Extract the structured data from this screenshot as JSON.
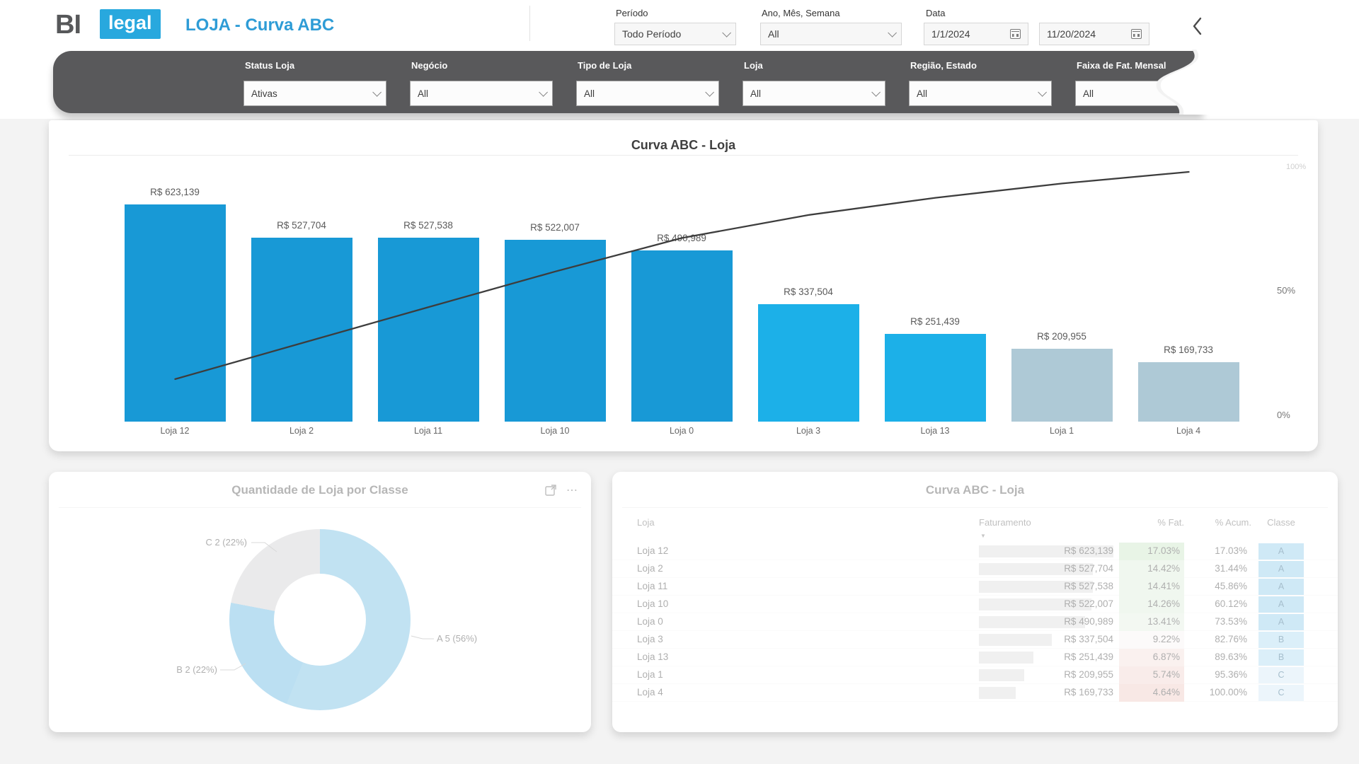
{
  "header": {
    "logo_primary": "BI",
    "logo_accent": "legal",
    "page_title": "LOJA - Curva ABC",
    "accent_color": "#28a8de"
  },
  "top_filters": {
    "periodo": {
      "label": "Período",
      "value": "Todo Período"
    },
    "ano_mes_semana": {
      "label": "Ano, Mês, Semana",
      "value": "All"
    },
    "data": {
      "label": "Data",
      "start": "1/1/2024",
      "end": "11/20/2024"
    }
  },
  "slicer_bar": {
    "filters": [
      {
        "label": "Status Loja",
        "value": "Ativas"
      },
      {
        "label": "Negócio",
        "value": "All"
      },
      {
        "label": "Tipo de Loja",
        "value": "All"
      },
      {
        "label": "Loja",
        "value": "All"
      },
      {
        "label": "Região, Estado",
        "value": "All"
      },
      {
        "label": "Faixa de Fat. Mensal",
        "value": "All"
      }
    ]
  },
  "chart_data": [
    {
      "type": "bar",
      "title": "Curva ABC - Loja",
      "categories": [
        "Loja 12",
        "Loja 2",
        "Loja 11",
        "Loja 10",
        "Loja 0",
        "Loja 3",
        "Loja 13",
        "Loja 1",
        "Loja 4"
      ],
      "series": [
        {
          "name": "Faturamento",
          "type": "bar",
          "values": [
            623139,
            527704,
            527538,
            522007,
            490989,
            337504,
            251439,
            209955,
            169733
          ],
          "labels": [
            "R$ 623,139",
            "R$ 527,704",
            "R$ 527,538",
            "R$ 522,007",
            "R$ 490,989",
            "R$ 337,504",
            "R$ 251,439",
            "R$ 209,955",
            "R$ 169,733"
          ],
          "classes": [
            "A",
            "A",
            "A",
            "A",
            "A",
            "B",
            "B",
            "C",
            "C"
          ]
        },
        {
          "name": "% Acumulado",
          "type": "line",
          "values": [
            17.03,
            31.44,
            45.86,
            60.12,
            73.53,
            82.76,
            89.63,
            95.36,
            100.0
          ]
        }
      ],
      "class_colors": {
        "A": "#1899d6",
        "B": "#1cb0e8",
        "C": "#aec9d6"
      },
      "line_color": "#3d3d3d",
      "y2_axis": {
        "ticks": [
          "100%",
          "50%",
          "0%"
        ],
        "range": [
          0,
          100
        ]
      },
      "ylim": [
        0,
        700000
      ],
      "legend": "off",
      "grid": "off"
    },
    {
      "type": "pie",
      "title": "Quantidade de Loja por Classe",
      "labels": [
        "A 5 (56%)",
        "B 2 (22%)",
        "C 2 (22%)"
      ],
      "values": [
        5,
        2,
        2
      ],
      "percents": [
        56,
        22,
        22
      ],
      "colors": [
        "#8fcbe9",
        "#85c6e8",
        "#d9dadc"
      ],
      "more_icon": "⋯"
    },
    {
      "type": "table",
      "title": "Curva ABC - Loja",
      "columns": [
        "Loja",
        "Faturamento",
        "% Fat.",
        "% Acum.",
        "Classe"
      ],
      "sort_column": "Faturamento",
      "sort_direction": "desc",
      "class_cell_colors": {
        "A": "#a9d8f0",
        "B": "#bfe2f5",
        "C": "#ddeef8"
      },
      "rows": [
        {
          "loja": "Loja 12",
          "faturamento": "R$ 623,139",
          "valor": 623139,
          "fat": "17.03%",
          "fat_value": 17.03,
          "acum": "17.03%",
          "classe": "A"
        },
        {
          "loja": "Loja 2",
          "faturamento": "R$ 527,704",
          "valor": 527704,
          "fat": "14.42%",
          "fat_value": 14.42,
          "acum": "31.44%",
          "classe": "A"
        },
        {
          "loja": "Loja 11",
          "faturamento": "R$ 527,538",
          "valor": 527538,
          "fat": "14.41%",
          "fat_value": 14.41,
          "acum": "45.86%",
          "classe": "A"
        },
        {
          "loja": "Loja 10",
          "faturamento": "R$ 522,007",
          "valor": 522007,
          "fat": "14.26%",
          "fat_value": 14.26,
          "acum": "60.12%",
          "classe": "A"
        },
        {
          "loja": "Loja 0",
          "faturamento": "R$ 490,989",
          "valor": 490989,
          "fat": "13.41%",
          "fat_value": 13.41,
          "acum": "73.53%",
          "classe": "A"
        },
        {
          "loja": "Loja 3",
          "faturamento": "R$ 337,504",
          "valor": 337504,
          "fat": "9.22%",
          "fat_value": 9.22,
          "acum": "82.76%",
          "classe": "B"
        },
        {
          "loja": "Loja 13",
          "faturamento": "R$ 251,439",
          "valor": 251439,
          "fat": "6.87%",
          "fat_value": 6.87,
          "acum": "89.63%",
          "classe": "B"
        },
        {
          "loja": "Loja 1",
          "faturamento": "R$ 209,955",
          "valor": 209955,
          "fat": "5.74%",
          "fat_value": 5.74,
          "acum": "95.36%",
          "classe": "C"
        },
        {
          "loja": "Loja 4",
          "faturamento": "R$ 169,733",
          "valor": 169733,
          "fat": "4.64%",
          "fat_value": 4.64,
          "acum": "100.00%",
          "classe": "C"
        }
      ]
    }
  ]
}
